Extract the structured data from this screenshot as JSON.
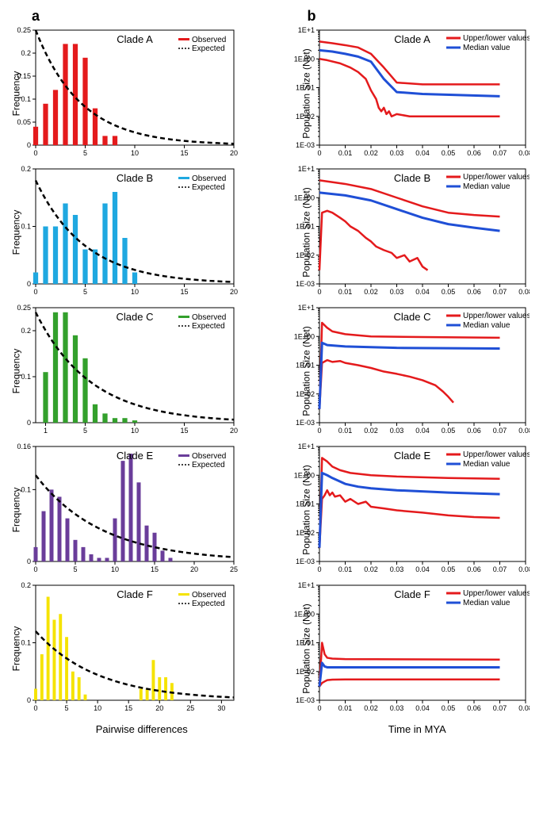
{
  "panel_a_label": "a",
  "panel_b_label": "b",
  "col_a": {
    "ylabel": "Frequency",
    "xlabel": "Pairwise differences",
    "legend": {
      "observed": "Observed",
      "expected": "Expected"
    },
    "charts": [
      {
        "clade": "Clade A",
        "color": "#e41a1c",
        "xmax": 20,
        "xticks": [
          0,
          5,
          10,
          15,
          20
        ],
        "ymax": 0.25,
        "yticks": [
          0,
          0.05,
          0.1,
          0.15,
          0.2,
          0.25
        ],
        "bars": [
          [
            0,
            0.04
          ],
          [
            1,
            0.09
          ],
          [
            2,
            0.12
          ],
          [
            3,
            0.22
          ],
          [
            4,
            0.22
          ],
          [
            5,
            0.19
          ],
          [
            6,
            0.08
          ],
          [
            7,
            0.02
          ],
          [
            8,
            0.02
          ]
        ],
        "expected_start": 0.25,
        "expected_decay": 0.22
      },
      {
        "clade": "Clade B",
        "color": "#1fa8e0",
        "xmax": 20,
        "xticks": [
          0,
          5,
          10,
          15,
          20
        ],
        "ymax": 0.2,
        "yticks": [
          0,
          0.1,
          0.2
        ],
        "bars": [
          [
            0,
            0.02
          ],
          [
            1,
            0.1
          ],
          [
            2,
            0.1
          ],
          [
            3,
            0.14
          ],
          [
            4,
            0.12
          ],
          [
            5,
            0.06
          ],
          [
            6,
            0.06
          ],
          [
            7,
            0.14
          ],
          [
            8,
            0.16
          ],
          [
            9,
            0.08
          ],
          [
            10,
            0.02
          ]
        ],
        "expected_start": 0.18,
        "expected_decay": 0.2
      },
      {
        "clade": "Clade C",
        "color": "#33a02c",
        "xmax": 20,
        "xticks": [
          1,
          5,
          10,
          15,
          20
        ],
        "ymax": 0.25,
        "yticks": [
          0,
          0.1,
          0.2,
          0.25
        ],
        "bars": [
          [
            1,
            0.11
          ],
          [
            2,
            0.24
          ],
          [
            3,
            0.24
          ],
          [
            4,
            0.19
          ],
          [
            5,
            0.14
          ],
          [
            6,
            0.04
          ],
          [
            7,
            0.02
          ],
          [
            8,
            0.01
          ],
          [
            9,
            0.01
          ],
          [
            10,
            0.005
          ]
        ],
        "expected_start": 0.24,
        "expected_decay": 0.18
      },
      {
        "clade": "Clade E",
        "color": "#6a3d9a",
        "xmax": 25,
        "xticks": [
          0,
          5,
          10,
          15,
          20,
          25
        ],
        "ymax": 0.16,
        "yticks": [
          0,
          0.1,
          0.16
        ],
        "bars": [
          [
            0,
            0.02
          ],
          [
            1,
            0.07
          ],
          [
            2,
            0.1
          ],
          [
            3,
            0.09
          ],
          [
            4,
            0.06
          ],
          [
            5,
            0.03
          ],
          [
            6,
            0.02
          ],
          [
            7,
            0.01
          ],
          [
            8,
            0.005
          ],
          [
            9,
            0.005
          ],
          [
            10,
            0.06
          ],
          [
            11,
            0.14
          ],
          [
            12,
            0.15
          ],
          [
            13,
            0.11
          ],
          [
            14,
            0.05
          ],
          [
            15,
            0.04
          ],
          [
            16,
            0.015
          ],
          [
            17,
            0.005
          ]
        ],
        "expected_start": 0.12,
        "expected_decay": 0.12
      },
      {
        "clade": "Clade F",
        "color": "#f5e300",
        "xmax": 32,
        "xticks": [
          0,
          5,
          10,
          15,
          20,
          25,
          30
        ],
        "ymax": 0.2,
        "yticks": [
          0,
          0.1,
          0.2
        ],
        "bars": [
          [
            0,
            0.02
          ],
          [
            1,
            0.08
          ],
          [
            2,
            0.18
          ],
          [
            3,
            0.14
          ],
          [
            4,
            0.15
          ],
          [
            5,
            0.11
          ],
          [
            6,
            0.05
          ],
          [
            7,
            0.04
          ],
          [
            8,
            0.01
          ],
          [
            17,
            0.02
          ],
          [
            18,
            0.02
          ],
          [
            19,
            0.07
          ],
          [
            20,
            0.04
          ],
          [
            21,
            0.04
          ],
          [
            22,
            0.03
          ]
        ],
        "expected_start": 0.12,
        "expected_decay": 0.1
      }
    ]
  },
  "col_b": {
    "ylabel": "Population Size (Net)",
    "xlabel": "Time in MYA",
    "legend": {
      "upper_lower": "Upper/lower values",
      "median": "Median value"
    },
    "xmax": 0.08,
    "xticks": [
      0,
      0.01,
      0.02,
      0.03,
      0.04,
      0.05,
      0.06,
      0.07,
      0.08
    ],
    "yticks_log": [
      -3,
      -2,
      -1,
      0,
      1
    ],
    "ytick_labels": [
      "1E-03",
      "1E-02",
      "1E-01",
      "1E+00",
      "1E+1"
    ],
    "upper_color": "#e41a1c",
    "median_color": "#1f4fd6",
    "charts": [
      {
        "clade": "Clade A",
        "upper": [
          [
            0,
            4
          ],
          [
            0.005,
            3.5
          ],
          [
            0.01,
            3
          ],
          [
            0.015,
            2.5
          ],
          [
            0.02,
            1.5
          ],
          [
            0.025,
            0.5
          ],
          [
            0.03,
            0.15
          ],
          [
            0.04,
            0.13
          ],
          [
            0.07,
            0.13
          ]
        ],
        "median": [
          [
            0,
            2
          ],
          [
            0.005,
            1.8
          ],
          [
            0.01,
            1.5
          ],
          [
            0.015,
            1.2
          ],
          [
            0.02,
            0.8
          ],
          [
            0.025,
            0.2
          ],
          [
            0.03,
            0.07
          ],
          [
            0.04,
            0.06
          ],
          [
            0.07,
            0.05
          ]
        ],
        "lower": [
          [
            0,
            1
          ],
          [
            0.003,
            0.9
          ],
          [
            0.008,
            0.7
          ],
          [
            0.012,
            0.5
          ],
          [
            0.015,
            0.35
          ],
          [
            0.018,
            0.2
          ],
          [
            0.02,
            0.08
          ],
          [
            0.022,
            0.04
          ],
          [
            0.023,
            0.02
          ],
          [
            0.024,
            0.015
          ],
          [
            0.025,
            0.02
          ],
          [
            0.026,
            0.012
          ],
          [
            0.027,
            0.015
          ],
          [
            0.028,
            0.01
          ],
          [
            0.03,
            0.012
          ],
          [
            0.035,
            0.01
          ],
          [
            0.07,
            0.01
          ]
        ]
      },
      {
        "clade": "Clade B",
        "upper": [
          [
            0,
            4
          ],
          [
            0.01,
            3
          ],
          [
            0.02,
            2
          ],
          [
            0.03,
            1
          ],
          [
            0.04,
            0.5
          ],
          [
            0.05,
            0.3
          ],
          [
            0.06,
            0.25
          ],
          [
            0.07,
            0.22
          ]
        ],
        "median": [
          [
            0,
            1.5
          ],
          [
            0.01,
            1.2
          ],
          [
            0.02,
            0.8
          ],
          [
            0.03,
            0.4
          ],
          [
            0.04,
            0.2
          ],
          [
            0.05,
            0.12
          ],
          [
            0.06,
            0.09
          ],
          [
            0.07,
            0.07
          ]
        ],
        "lower": [
          [
            0,
            0.003
          ],
          [
            0.001,
            0.3
          ],
          [
            0.003,
            0.35
          ],
          [
            0.005,
            0.3
          ],
          [
            0.008,
            0.2
          ],
          [
            0.01,
            0.15
          ],
          [
            0.012,
            0.1
          ],
          [
            0.015,
            0.07
          ],
          [
            0.018,
            0.04
          ],
          [
            0.02,
            0.03
          ],
          [
            0.022,
            0.02
          ],
          [
            0.025,
            0.015
          ],
          [
            0.028,
            0.012
          ],
          [
            0.03,
            0.008
          ],
          [
            0.033,
            0.01
          ],
          [
            0.035,
            0.006
          ],
          [
            0.038,
            0.008
          ],
          [
            0.04,
            0.004
          ],
          [
            0.042,
            0.003
          ]
        ]
      },
      {
        "clade": "Clade C",
        "upper": [
          [
            0,
            0.003
          ],
          [
            0.001,
            3
          ],
          [
            0.003,
            2
          ],
          [
            0.005,
            1.5
          ],
          [
            0.01,
            1.2
          ],
          [
            0.02,
            1
          ],
          [
            0.04,
            0.95
          ],
          [
            0.07,
            0.9
          ]
        ],
        "median": [
          [
            0,
            0.003
          ],
          [
            0.001,
            0.6
          ],
          [
            0.003,
            0.5
          ],
          [
            0.01,
            0.45
          ],
          [
            0.03,
            0.4
          ],
          [
            0.07,
            0.38
          ]
        ],
        "lower": [
          [
            0,
            0.003
          ],
          [
            0.001,
            0.12
          ],
          [
            0.003,
            0.15
          ],
          [
            0.005,
            0.13
          ],
          [
            0.008,
            0.14
          ],
          [
            0.01,
            0.12
          ],
          [
            0.015,
            0.1
          ],
          [
            0.02,
            0.08
          ],
          [
            0.025,
            0.06
          ],
          [
            0.03,
            0.05
          ],
          [
            0.035,
            0.04
          ],
          [
            0.04,
            0.03
          ],
          [
            0.045,
            0.02
          ],
          [
            0.048,
            0.012
          ],
          [
            0.05,
            0.008
          ],
          [
            0.052,
            0.005
          ]
        ]
      },
      {
        "clade": "Clade E",
        "upper": [
          [
            0,
            0.003
          ],
          [
            0.001,
            4
          ],
          [
            0.003,
            3
          ],
          [
            0.005,
            2
          ],
          [
            0.008,
            1.5
          ],
          [
            0.012,
            1.2
          ],
          [
            0.02,
            1
          ],
          [
            0.03,
            0.9
          ],
          [
            0.05,
            0.8
          ],
          [
            0.07,
            0.75
          ]
        ],
        "median": [
          [
            0,
            0.003
          ],
          [
            0.001,
            1.2
          ],
          [
            0.003,
            1
          ],
          [
            0.005,
            0.8
          ],
          [
            0.01,
            0.5
          ],
          [
            0.015,
            0.4
          ],
          [
            0.02,
            0.35
          ],
          [
            0.03,
            0.3
          ],
          [
            0.05,
            0.25
          ],
          [
            0.07,
            0.22
          ]
        ],
        "lower": [
          [
            0,
            0.003
          ],
          [
            0.001,
            0.15
          ],
          [
            0.002,
            0.2
          ],
          [
            0.003,
            0.3
          ],
          [
            0.004,
            0.2
          ],
          [
            0.005,
            0.25
          ],
          [
            0.006,
            0.18
          ],
          [
            0.008,
            0.2
          ],
          [
            0.01,
            0.12
          ],
          [
            0.012,
            0.15
          ],
          [
            0.015,
            0.1
          ],
          [
            0.018,
            0.12
          ],
          [
            0.02,
            0.08
          ],
          [
            0.025,
            0.07
          ],
          [
            0.03,
            0.06
          ],
          [
            0.04,
            0.05
          ],
          [
            0.05,
            0.04
          ],
          [
            0.06,
            0.035
          ],
          [
            0.07,
            0.033
          ]
        ]
      },
      {
        "clade": "Clade F",
        "upper": [
          [
            0,
            0.003
          ],
          [
            0.001,
            0.1
          ],
          [
            0.002,
            0.04
          ],
          [
            0.003,
            0.03
          ],
          [
            0.005,
            0.028
          ],
          [
            0.01,
            0.027
          ],
          [
            0.07,
            0.026
          ]
        ],
        "median": [
          [
            0,
            0.003
          ],
          [
            0.001,
            0.02
          ],
          [
            0.002,
            0.015
          ],
          [
            0.003,
            0.014
          ],
          [
            0.01,
            0.014
          ],
          [
            0.07,
            0.014
          ]
        ],
        "lower": [
          [
            0,
            0.003
          ],
          [
            0.001,
            0.004
          ],
          [
            0.002,
            0.0045
          ],
          [
            0.003,
            0.005
          ],
          [
            0.005,
            0.0052
          ],
          [
            0.01,
            0.0053
          ],
          [
            0.07,
            0.0053
          ]
        ]
      }
    ]
  }
}
